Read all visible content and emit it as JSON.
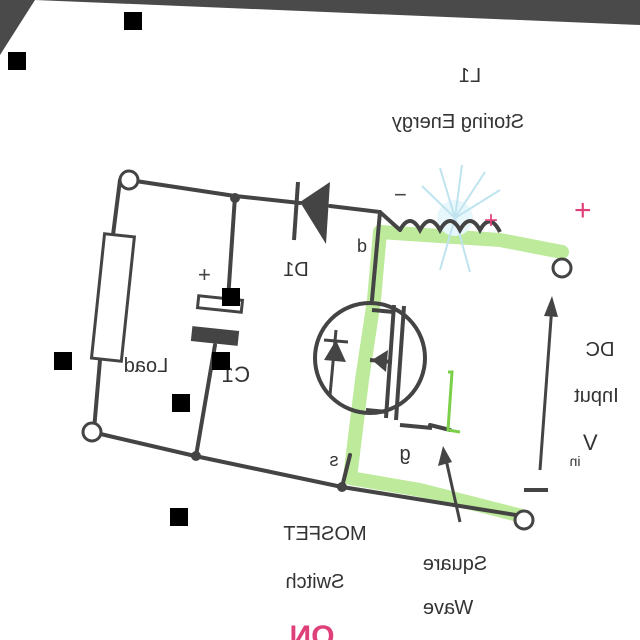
{
  "labels": {
    "inductor_name": "L1",
    "inductor_desc": "Storing Energy",
    "diode_name": "D1",
    "capacitor_name": "C1",
    "load": "Load",
    "dc_line1": "DC",
    "dc_line2": "Input",
    "dc_line3": "V",
    "dc_subscript": "in",
    "mosfet_line1": "MOSFET",
    "mosfet_line2": "Switch",
    "square_line1": "Square",
    "square_line2": "Wave",
    "on_text": "ON",
    "pin_d": "d",
    "pin_s": "s",
    "pin_g": "g",
    "plus": "+",
    "minus": "−"
  },
  "colors": {
    "wire": "#444444",
    "current_highlight": "#a8e37a",
    "polarity": "#e0407a",
    "background_paper": "#ffffff",
    "background_outside": "#4a4a4a"
  }
}
